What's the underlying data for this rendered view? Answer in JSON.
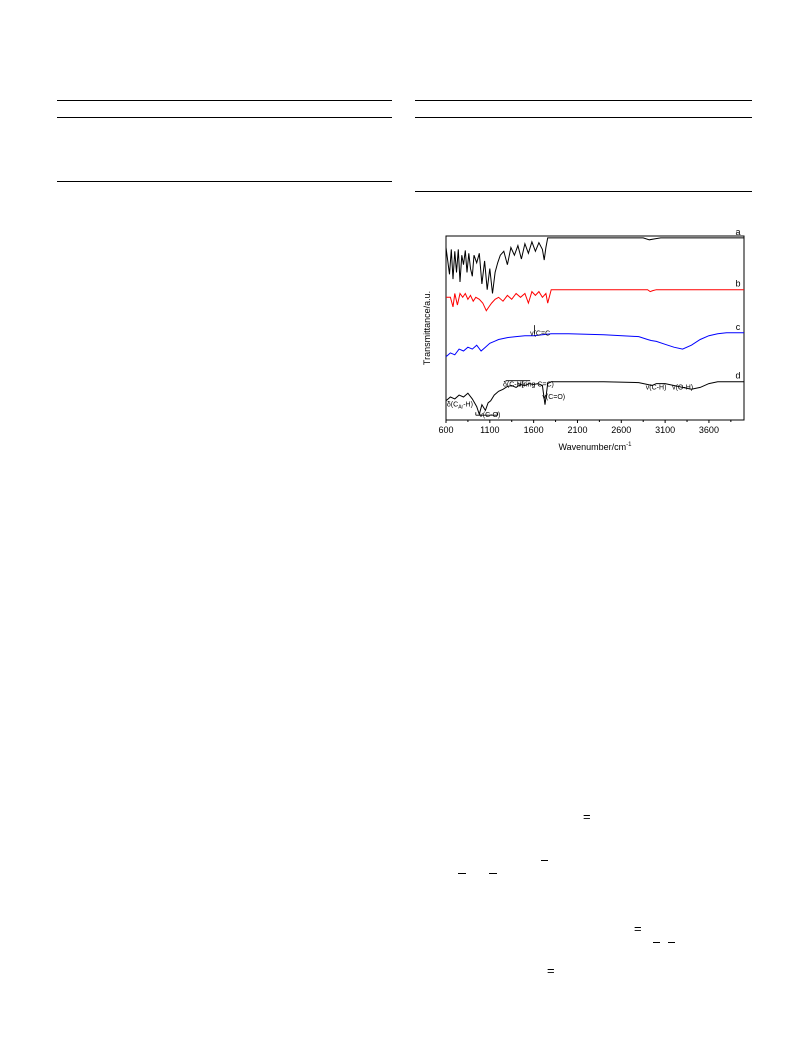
{
  "chart_data": {
    "type": "line",
    "title": "",
    "xlabel": "Wavenumber/cm",
    "xlabel_superscript": "-1",
    "ylabel": "Transmittance/a.u.",
    "xlim": [
      600,
      4000
    ],
    "x_ticks": [
      600,
      1100,
      1600,
      2100,
      2600,
      3100,
      3600
    ],
    "x_tick_labels": [
      "600",
      "1100",
      "1600",
      "2100",
      "2600",
      "3100",
      "3600"
    ],
    "y_ticks_shown": false,
    "grid": false,
    "legend": "none",
    "series": [
      {
        "name": "a",
        "color": "#000000",
        "offset": 0.9,
        "x": [
          600,
          640,
          660,
          680,
          700,
          720,
          740,
          760,
          780,
          800,
          820,
          840,
          860,
          880,
          900,
          920,
          950,
          980,
          1010,
          1040,
          1070,
          1100,
          1130,
          1160,
          1190,
          1220,
          1260,
          1300,
          1340,
          1380,
          1420,
          1460,
          1500,
          1540,
          1580,
          1620,
          1660,
          1700,
          1720,
          1740,
          1760,
          2000,
          2500,
          2850,
          2920,
          2980,
          3050,
          3500,
          4000
        ],
        "y": [
          0.88,
          0.6,
          0.86,
          0.55,
          0.84,
          0.62,
          0.86,
          0.52,
          0.8,
          0.7,
          0.85,
          0.62,
          0.82,
          0.66,
          0.58,
          0.8,
          0.72,
          0.82,
          0.5,
          0.74,
          0.44,
          0.66,
          0.4,
          0.62,
          0.72,
          0.8,
          0.84,
          0.7,
          0.88,
          0.8,
          0.9,
          0.76,
          0.92,
          0.82,
          0.94,
          0.84,
          0.93,
          0.86,
          0.75,
          0.88,
          0.98,
          0.98,
          0.98,
          0.98,
          0.96,
          0.97,
          0.98,
          0.98,
          0.98
        ]
      },
      {
        "name": "b",
        "color": "#ff0000",
        "offset": 0.6,
        "x": [
          600,
          650,
          680,
          700,
          730,
          760,
          790,
          820,
          850,
          880,
          910,
          940,
          980,
          1020,
          1060,
          1090,
          1120,
          1160,
          1200,
          1250,
          1300,
          1350,
          1400,
          1450,
          1500,
          1540,
          1580,
          1620,
          1660,
          1700,
          1740,
          1760,
          1800,
          2500,
          2900,
          2930,
          2960,
          3000,
          4000
        ],
        "y": [
          0.66,
          0.66,
          0.56,
          0.7,
          0.58,
          0.7,
          0.66,
          0.7,
          0.64,
          0.68,
          0.62,
          0.66,
          0.64,
          0.6,
          0.52,
          0.56,
          0.6,
          0.64,
          0.66,
          0.62,
          0.68,
          0.64,
          0.7,
          0.66,
          0.7,
          0.6,
          0.72,
          0.68,
          0.72,
          0.66,
          0.7,
          0.6,
          0.74,
          0.74,
          0.74,
          0.72,
          0.73,
          0.74,
          0.74
        ]
      },
      {
        "name": "c",
        "color": "#0000ff",
        "offset": 0.3,
        "x": [
          600,
          650,
          700,
          750,
          800,
          850,
          900,
          950,
          1000,
          1050,
          1100,
          1150,
          1200,
          1300,
          1400,
          1500,
          1600,
          1700,
          1800,
          2000,
          2400,
          2800,
          2900,
          2940,
          3000,
          3100,
          3200,
          3300,
          3400,
          3500,
          3600,
          3700,
          3800,
          4000
        ],
        "y": [
          0.34,
          0.38,
          0.36,
          0.42,
          0.4,
          0.44,
          0.42,
          0.46,
          0.4,
          0.44,
          0.48,
          0.5,
          0.52,
          0.54,
          0.55,
          0.56,
          0.56,
          0.57,
          0.58,
          0.58,
          0.57,
          0.55,
          0.52,
          0.51,
          0.5,
          0.47,
          0.44,
          0.42,
          0.46,
          0.52,
          0.56,
          0.58,
          0.59,
          0.59
        ]
      },
      {
        "name": "d",
        "color": "#000000",
        "offset": 0.0,
        "x": [
          600,
          650,
          700,
          750,
          800,
          850,
          900,
          950,
          980,
          1010,
          1050,
          1080,
          1110,
          1150,
          1200,
          1250,
          1300,
          1350,
          1400,
          1450,
          1500,
          1550,
          1600,
          1650,
          1700,
          1730,
          1760,
          1800,
          2000,
          2400,
          2800,
          2900,
          2950,
          3000,
          3100,
          3200,
          3300,
          3400,
          3500,
          3600,
          3700,
          4000
        ],
        "y": [
          0.18,
          0.22,
          0.2,
          0.24,
          0.22,
          0.26,
          0.2,
          0.12,
          0.04,
          0.14,
          0.08,
          0.16,
          0.18,
          0.24,
          0.28,
          0.3,
          0.33,
          0.34,
          0.32,
          0.35,
          0.34,
          0.36,
          0.35,
          0.36,
          0.34,
          0.14,
          0.36,
          0.38,
          0.38,
          0.38,
          0.37,
          0.35,
          0.34,
          0.36,
          0.36,
          0.34,
          0.32,
          0.3,
          0.32,
          0.36,
          0.38,
          0.38
        ]
      }
    ],
    "annotations": [
      {
        "text": "v(C=C",
        "x": 1560,
        "y": 0.86
      },
      {
        "text": "δ(C-H)",
        "x": 1250,
        "y": 0.33
      },
      {
        "text": "v(ring C=C)",
        "x": 1420,
        "y": 0.33
      },
      {
        "text": "v(C=O)",
        "x": 1700,
        "y": 0.2
      },
      {
        "text": "v(C-H)",
        "x": 2880,
        "y": 0.3
      },
      {
        "text": "v(O-H)",
        "x": 3180,
        "y": 0.3
      },
      {
        "text": "δ(C",
        "sub": "Ar",
        "tail": "-H)",
        "x": 610,
        "y": 0.12
      },
      {
        "text": "v(C-O)",
        "x": 980,
        "y": 0.01
      }
    ]
  }
}
